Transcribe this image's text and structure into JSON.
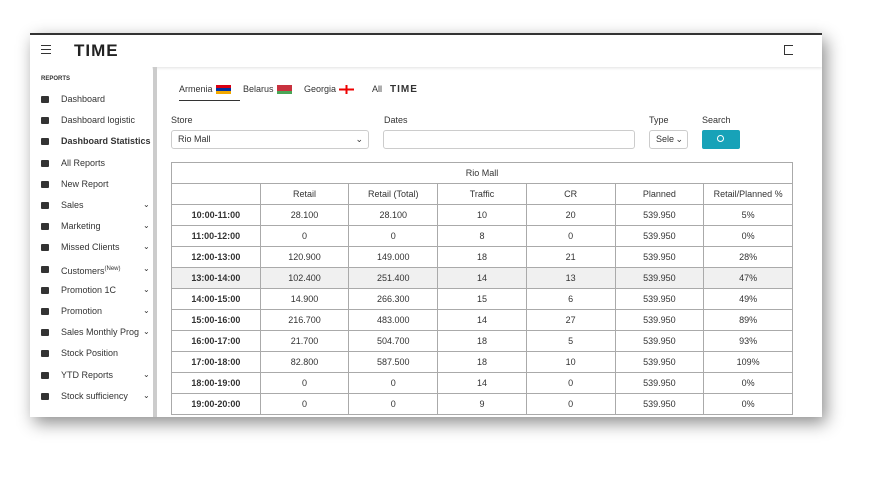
{
  "header": {
    "logo": "TIME"
  },
  "sidebar": {
    "section": "REPORTS",
    "items": [
      {
        "label": "Dashboard",
        "active": false,
        "submenu": false
      },
      {
        "label": "Dashboard logistic",
        "active": false,
        "submenu": false
      },
      {
        "label": "Dashboard Statistics",
        "active": true,
        "submenu": false
      },
      {
        "label": "All Reports",
        "active": false,
        "submenu": false
      },
      {
        "label": "New Report",
        "active": false,
        "submenu": false
      },
      {
        "label": "Sales",
        "active": false,
        "submenu": true
      },
      {
        "label": "Marketing",
        "active": false,
        "submenu": true
      },
      {
        "label": "Missed Clients",
        "active": false,
        "submenu": true
      },
      {
        "label": "Customers",
        "badge": "(New)",
        "active": false,
        "submenu": true
      },
      {
        "label": "Promotion 1C",
        "active": false,
        "submenu": true
      },
      {
        "label": "Promotion",
        "active": false,
        "submenu": true
      },
      {
        "label": "Sales Monthly Prog",
        "active": false,
        "submenu": true
      },
      {
        "label": "Stock Position",
        "active": false,
        "submenu": false
      },
      {
        "label": "YTD Reports",
        "active": false,
        "submenu": true
      },
      {
        "label": "Stock sufficiency",
        "active": false,
        "submenu": true
      }
    ]
  },
  "tabs": [
    {
      "label": "Armenia"
    },
    {
      "label": "Belarus"
    },
    {
      "label": "Georgia"
    },
    {
      "label": "All",
      "logo": "TIME"
    }
  ],
  "filters": {
    "store_label": "Store",
    "store_value": "Rio Mall",
    "dates_label": "Dates",
    "type_label": "Type",
    "type_value": "Sele",
    "search_label": "Search"
  },
  "table": {
    "title": "Rio Mall",
    "columns": [
      "",
      "Retail",
      "Retail (Total)",
      "Traffic",
      "CR",
      "Planned",
      "Retail/Planned %"
    ],
    "rows": [
      [
        "10:00-11:00",
        "28.100",
        "28.100",
        "10",
        "20",
        "539.950",
        "5%"
      ],
      [
        "11:00-12:00",
        "0",
        "0",
        "8",
        "0",
        "539.950",
        "0%"
      ],
      [
        "12:00-13:00",
        "120.900",
        "149.000",
        "18",
        "21",
        "539.950",
        "28%"
      ],
      [
        "13:00-14:00",
        "102.400",
        "251.400",
        "14",
        "13",
        "539.950",
        "47%"
      ],
      [
        "14:00-15:00",
        "14.900",
        "266.300",
        "15",
        "6",
        "539.950",
        "49%"
      ],
      [
        "15:00-16:00",
        "216.700",
        "483.000",
        "14",
        "27",
        "539.950",
        "89%"
      ],
      [
        "16:00-17:00",
        "21.700",
        "504.700",
        "18",
        "5",
        "539.950",
        "93%"
      ],
      [
        "17:00-18:00",
        "82.800",
        "587.500",
        "18",
        "10",
        "539.950",
        "109%"
      ],
      [
        "18:00-19:00",
        "0",
        "0",
        "14",
        "0",
        "539.950",
        "0%"
      ],
      [
        "19:00-20:00",
        "0",
        "0",
        "9",
        "0",
        "539.950",
        "0%"
      ]
    ],
    "highlight_row": 3
  }
}
